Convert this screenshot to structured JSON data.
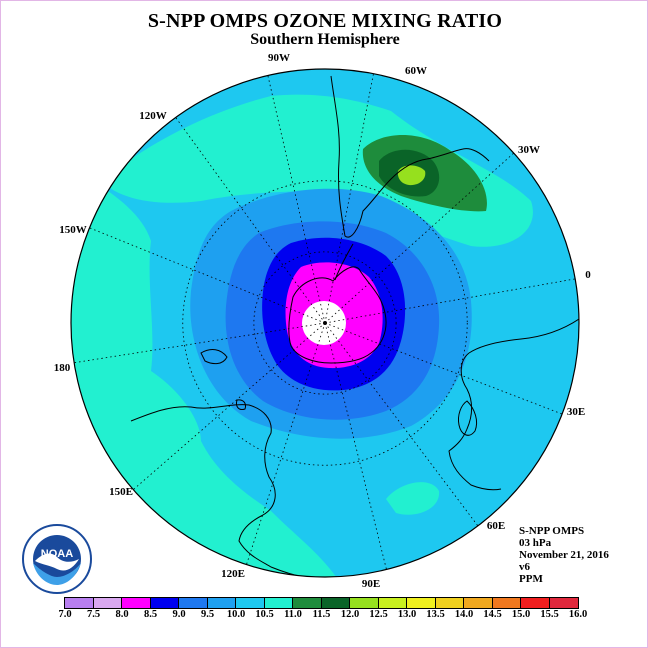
{
  "title": "S-NPP OMPS OZONE MIXING RATIO",
  "subtitle": "Southern Hemisphere",
  "longitude_labels": [
    "90W",
    "60W",
    "30W",
    "0",
    "30E",
    "60E",
    "90E",
    "120E",
    "150E",
    "180",
    "150W",
    "120W"
  ],
  "info": {
    "instrument": "S-NPP OMPS",
    "level": "03 hPa",
    "date": "November 21, 2016",
    "version": "v6",
    "units": "PPM"
  },
  "colorbar": {
    "labels": [
      "7.0",
      "7.5",
      "8.0",
      "8.5",
      "9.0",
      "9.5",
      "10.0",
      "10.5",
      "11.0",
      "11.5",
      "12.0",
      "12.5",
      "13.0",
      "13.5",
      "14.0",
      "14.5",
      "15.0",
      "15.5",
      "16.0"
    ],
    "colors": [
      "#b87ff0",
      "#d9a8f0",
      "#ff00ff",
      "#0000f0",
      "#1e78f0",
      "#1ea0f0",
      "#1ec8f0",
      "#22f0d0",
      "#1e8c3c",
      "#0a6428",
      "#96e01e",
      "#c8f01e",
      "#f0f01e",
      "#f0d01e",
      "#f0a81e",
      "#f0781e",
      "#f01e1e",
      "#e0283c",
      "#8c5a3c"
    ]
  },
  "map_colors": {
    "level_11_0": "#22f0d0",
    "level_10_5": "#1ec8f0",
    "level_10_0": "#1ea0f0",
    "level_9_5": "#1e78f0",
    "level_9_0": "#0000f0",
    "level_8_0": "#ff00ff",
    "level_11_5": "#1e8c3c",
    "level_12_0": "#0a6428",
    "level_12_5": "#96e01e"
  },
  "logo_text": "NOAA"
}
